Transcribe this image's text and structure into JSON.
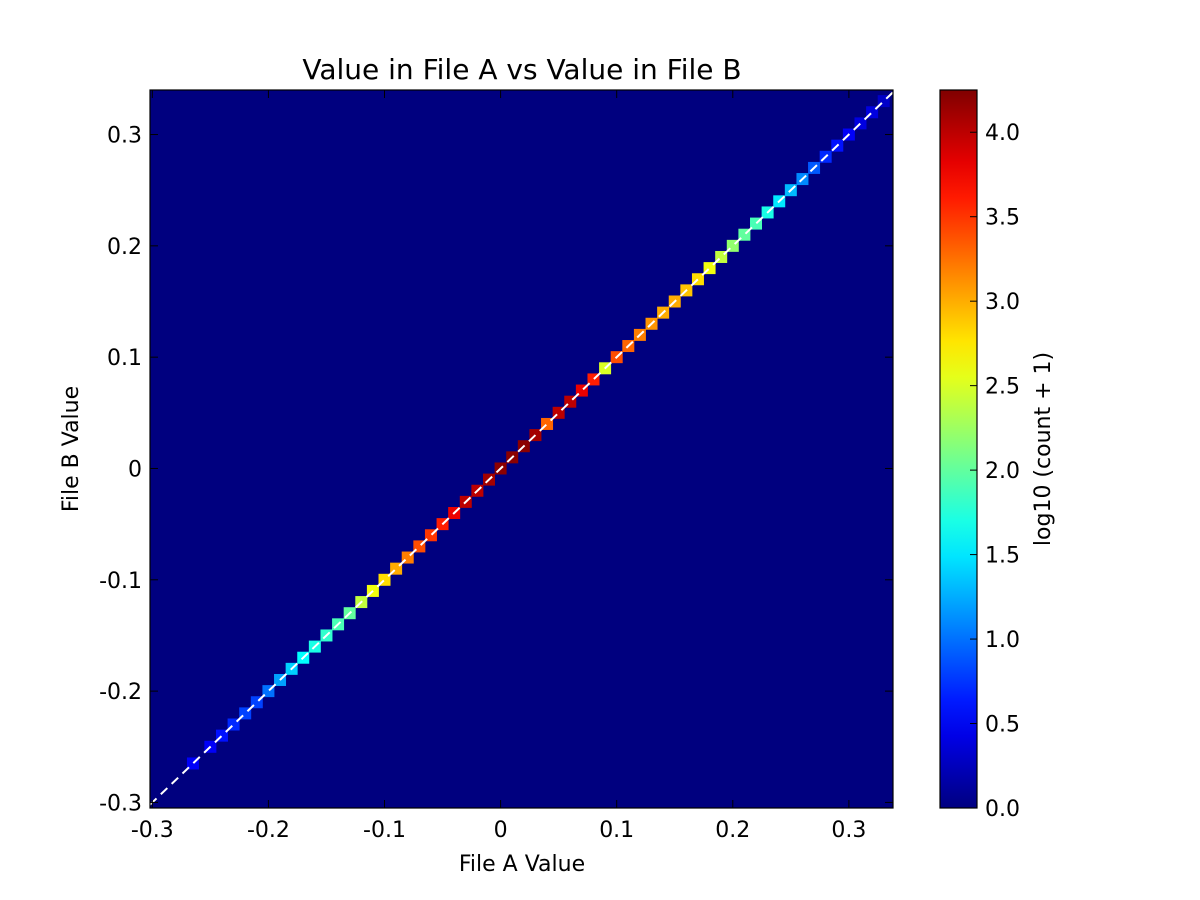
{
  "chart_data": {
    "type": "heatmap",
    "title": "Value in File A vs Value in File B",
    "xlabel": "File A Value",
    "ylabel": "File B Value",
    "xlim": [
      -0.302,
      0.338
    ],
    "ylim": [
      -0.305,
      0.34
    ],
    "xticks": [
      {
        "value": -0.3,
        "label": "-0.3"
      },
      {
        "value": -0.2,
        "label": "-0.2"
      },
      {
        "value": -0.1,
        "label": "-0.1"
      },
      {
        "value": 0,
        "label": "0"
      },
      {
        "value": 0.1,
        "label": "0.1"
      },
      {
        "value": 0.2,
        "label": "0.2"
      },
      {
        "value": 0.3,
        "label": "0.3"
      }
    ],
    "yticks": [
      {
        "value": -0.3,
        "label": "-0.3"
      },
      {
        "value": -0.2,
        "label": "-0.2"
      },
      {
        "value": -0.1,
        "label": "-0.1"
      },
      {
        "value": 0,
        "label": "0"
      },
      {
        "value": 0.1,
        "label": "0.1"
      },
      {
        "value": 0.2,
        "label": "0.2"
      },
      {
        "value": 0.3,
        "label": "0.3"
      }
    ],
    "reference_line": {
      "style": "dashed",
      "color": "#ffffff",
      "from": [
        -0.302,
        -0.302
      ],
      "to": [
        0.338,
        0.338
      ]
    },
    "background_color": "#00007f",
    "colormap": "jet",
    "colorbar": {
      "label": "log10 (count + 1)",
      "range": [
        0.0,
        4.25
      ],
      "ticks": [
        {
          "value": 0.0,
          "label": "0.0"
        },
        {
          "value": 0.5,
          "label": "0.5"
        },
        {
          "value": 1.0,
          "label": "1.0"
        },
        {
          "value": 1.5,
          "label": "1.5"
        },
        {
          "value": 2.0,
          "label": "2.0"
        },
        {
          "value": 2.5,
          "label": "2.5"
        },
        {
          "value": 3.0,
          "label": "3.0"
        },
        {
          "value": 3.5,
          "label": "3.5"
        },
        {
          "value": 4.0,
          "label": "4.0"
        }
      ]
    },
    "bins": [
      {
        "x": -0.265,
        "v": 0.5
      },
      {
        "x": -0.25,
        "v": 0.5
      },
      {
        "x": -0.24,
        "v": 0.6
      },
      {
        "x": -0.23,
        "v": 0.7
      },
      {
        "x": -0.22,
        "v": 0.8
      },
      {
        "x": -0.21,
        "v": 0.8
      },
      {
        "x": -0.2,
        "v": 1.0
      },
      {
        "x": -0.19,
        "v": 1.2
      },
      {
        "x": -0.18,
        "v": 1.4
      },
      {
        "x": -0.17,
        "v": 1.6
      },
      {
        "x": -0.16,
        "v": 1.7
      },
      {
        "x": -0.15,
        "v": 1.8
      },
      {
        "x": -0.14,
        "v": 1.9
      },
      {
        "x": -0.13,
        "v": 2.0
      },
      {
        "x": -0.12,
        "v": 2.4
      },
      {
        "x": -0.11,
        "v": 2.6
      },
      {
        "x": -0.1,
        "v": 2.8
      },
      {
        "x": -0.09,
        "v": 3.0
      },
      {
        "x": -0.08,
        "v": 3.2
      },
      {
        "x": -0.07,
        "v": 3.4
      },
      {
        "x": -0.06,
        "v": 3.5
      },
      {
        "x": -0.05,
        "v": 3.6
      },
      {
        "x": -0.04,
        "v": 3.8
      },
      {
        "x": -0.03,
        "v": 4.0
      },
      {
        "x": -0.02,
        "v": 4.0
      },
      {
        "x": -0.01,
        "v": 4.1
      },
      {
        "x": 0.0,
        "v": 4.2
      },
      {
        "x": 0.01,
        "v": 4.2
      },
      {
        "x": 0.02,
        "v": 4.2
      },
      {
        "x": 0.03,
        "v": 4.1
      },
      {
        "x": 0.04,
        "v": 3.3
      },
      {
        "x": 0.05,
        "v": 4.0
      },
      {
        "x": 0.06,
        "v": 4.0
      },
      {
        "x": 0.07,
        "v": 3.8
      },
      {
        "x": 0.08,
        "v": 3.6
      },
      {
        "x": 0.09,
        "v": 2.5
      },
      {
        "x": 0.1,
        "v": 3.4
      },
      {
        "x": 0.11,
        "v": 3.3
      },
      {
        "x": 0.12,
        "v": 3.2
      },
      {
        "x": 0.13,
        "v": 3.1
      },
      {
        "x": 0.14,
        "v": 3.0
      },
      {
        "x": 0.15,
        "v": 3.0
      },
      {
        "x": 0.16,
        "v": 2.9
      },
      {
        "x": 0.17,
        "v": 2.8
      },
      {
        "x": 0.18,
        "v": 2.6
      },
      {
        "x": 0.19,
        "v": 2.4
      },
      {
        "x": 0.2,
        "v": 2.2
      },
      {
        "x": 0.21,
        "v": 2.0
      },
      {
        "x": 0.22,
        "v": 1.9
      },
      {
        "x": 0.23,
        "v": 1.7
      },
      {
        "x": 0.24,
        "v": 1.5
      },
      {
        "x": 0.25,
        "v": 1.3
      },
      {
        "x": 0.26,
        "v": 1.1
      },
      {
        "x": 0.27,
        "v": 0.9
      },
      {
        "x": 0.28,
        "v": 0.7
      },
      {
        "x": 0.29,
        "v": 0.6
      },
      {
        "x": 0.3,
        "v": 0.5
      },
      {
        "x": 0.31,
        "v": 0.4
      },
      {
        "x": 0.32,
        "v": 0.4
      },
      {
        "x": 0.33,
        "v": 0.3
      }
    ]
  }
}
